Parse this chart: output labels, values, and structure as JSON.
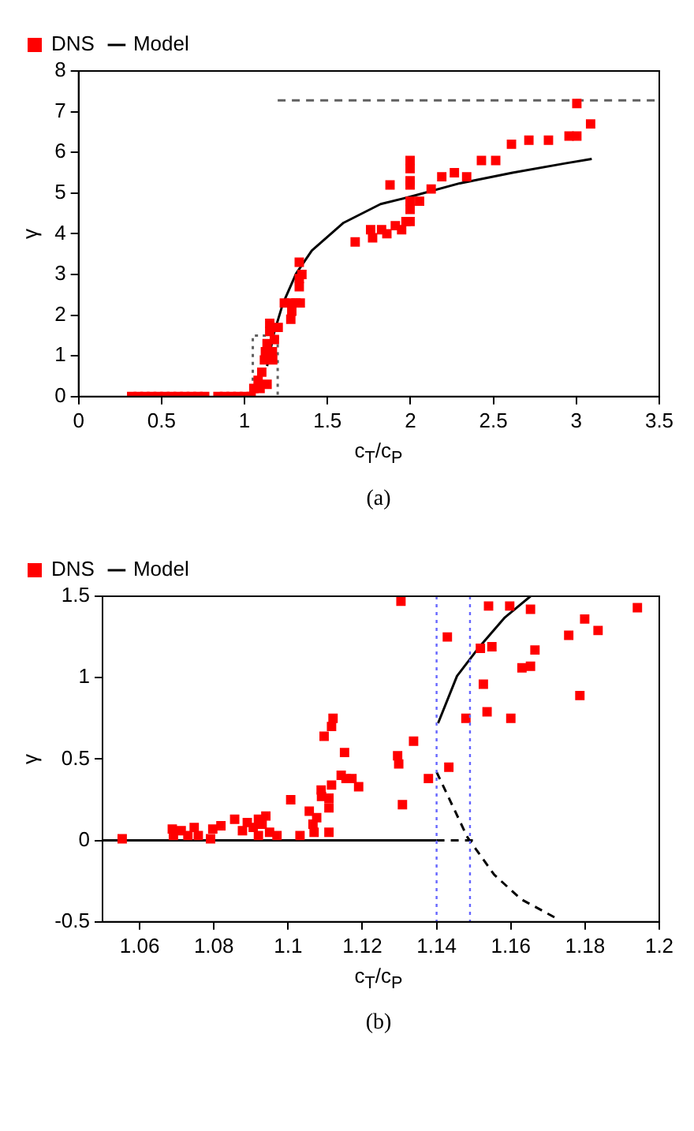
{
  "chart_data": [
    {
      "type": "scatter",
      "xlabel": "c$_{T}$/c$_{P}$",
      "ylabel": "γ",
      "xlim": [
        0,
        3.5
      ],
      "ylim": [
        0,
        8
      ],
      "xticks": [
        0,
        0.5,
        1,
        1.5,
        2,
        2.5,
        3,
        3.5
      ],
      "yticks": [
        0,
        1,
        2,
        3,
        4,
        5,
        6,
        7,
        8
      ],
      "legend": "top left",
      "annotations": [
        "(a)"
      ],
      "series": [
        {
          "name": "DNS",
          "color": "#ff0000",
          "marker": "square",
          "x": [
            0.32,
            0.36,
            0.4,
            0.44,
            0.48,
            0.52,
            0.56,
            0.6,
            0.64,
            0.68,
            0.72,
            0.76,
            0.84,
            0.88,
            0.92,
            0.96,
            1.0,
            1.04,
            1.056,
            1.082,
            1.094,
            1.104,
            1.12,
            1.126,
            1.136,
            1.136,
            1.152,
            1.152,
            1.168,
            1.17,
            1.18,
            1.203,
            1.24,
            1.279,
            1.279,
            1.285,
            1.31,
            1.33,
            1.33,
            1.33,
            1.336,
            1.346,
            1.667,
            1.76,
            1.772,
            1.826,
            1.858,
            1.877,
            1.909,
            1.947,
            1.973,
            1.998,
            1.998,
            1.998,
            1.998,
            1.998,
            1.998,
            1.998,
            2.055,
            2.125,
            2.189,
            2.265,
            2.339,
            2.428,
            2.514,
            2.609,
            2.714,
            2.832,
            2.956,
            3.003,
            3.003,
            3.086
          ],
          "values": [
            0,
            0,
            0,
            0,
            0,
            0,
            0,
            0,
            0,
            0,
            0,
            0,
            0,
            0,
            0,
            0,
            0,
            0,
            0.2,
            0.4,
            0.2,
            0.6,
            0.9,
            1.1,
            1.3,
            0.3,
            1.8,
            1.6,
            1.1,
            0.9,
            1.4,
            1.7,
            2.3,
            2.3,
            1.9,
            2.1,
            2.3,
            3.3,
            2.9,
            2.7,
            2.3,
            3.0,
            3.8,
            4.1,
            3.9,
            4.1,
            4.0,
            5.2,
            4.2,
            4.1,
            4.3,
            4.3,
            4.6,
            4.8,
            5.2,
            5.3,
            5.6,
            5.8,
            4.8,
            5.1,
            5.4,
            5.5,
            5.4,
            5.8,
            5.8,
            6.2,
            6.3,
            6.3,
            6.4,
            6.4,
            7.2,
            6.7
          ]
        },
        {
          "name": "Model",
          "color": "#000000",
          "type": "line",
          "marker": "none",
          "line_style": "solid",
          "x": [
            1.136,
            1.177,
            1.231,
            1.311,
            1.406,
            1.597,
            1.82,
            1.998,
            2.297,
            2.615,
            2.933,
            3.093
          ],
          "values": [
            0.75,
            1.55,
            2.28,
            3.02,
            3.59,
            4.27,
            4.73,
            4.91,
            5.24,
            5.5,
            5.73,
            5.84
          ]
        },
        {
          "color": "#606060",
          "type": "line",
          "marker": "none",
          "line_style": "dashed",
          "x": [
            1.2,
            3.5
          ],
          "values": [
            7.28,
            7.28
          ]
        },
        {
          "color": "#606060",
          "type": "line",
          "marker": "none",
          "line_style": "dotted",
          "x": [
            1.05,
            1.05,
            1.2,
            1.2
          ],
          "values": [
            0,
            1.5,
            1.5,
            0
          ]
        }
      ]
    },
    {
      "type": "scatter",
      "xlabel": "c$_{T}$/c$_{P}$",
      "ylabel": "γ",
      "xlim": [
        1.05,
        1.2
      ],
      "ylim": [
        -0.5,
        1.5
      ],
      "xticks": [
        1.06,
        1.08,
        1.1,
        1.12,
        1.14,
        1.16,
        1.18,
        1.2
      ],
      "yticks": [
        -0.5,
        0,
        0.5,
        1,
        1.5
      ],
      "legend": "top left",
      "annotations": [
        "(b)"
      ],
      "ref_lines": [
        {
          "axis": "x",
          "value": 1.14,
          "color": "#6666ff",
          "line_style": "dotted"
        },
        {
          "axis": "x",
          "value": 1.149,
          "color": "#6666ff",
          "line_style": "dotted"
        }
      ],
      "series": [
        {
          "name": "DNS",
          "color": "#ff0000",
          "marker": "square",
          "x": [
            1.0553,
            1.0688,
            1.0691,
            1.0712,
            1.073,
            1.0747,
            1.0758,
            1.0791,
            1.0797,
            1.0819,
            1.0856,
            1.0877,
            1.089,
            1.0906,
            1.092,
            1.092,
            1.093,
            1.094,
            1.095,
            1.097,
            1.1007,
            1.1032,
            1.1057,
            1.1067,
            1.107,
            1.1077,
            1.1089,
            1.109,
            1.1097,
            1.111,
            1.111,
            1.111,
            1.1117,
            1.1117,
            1.1121,
            1.1143,
            1.1152,
            1.1156,
            1.1172,
            1.119,
            1.1295,
            1.1298,
            1.1304,
            1.1308,
            1.1338,
            1.1378,
            1.1429,
            1.1433,
            1.1479,
            1.1518,
            1.1526,
            1.1536,
            1.154,
            1.1549,
            1.1597,
            1.16,
            1.163,
            1.1653,
            1.1653,
            1.1665,
            1.1756,
            1.1786,
            1.1799,
            1.1835,
            1.1941
          ],
          "values": [
            0.01,
            0.07,
            0.03,
            0.06,
            0.03,
            0.08,
            0.03,
            0.01,
            0.07,
            0.09,
            0.13,
            0.06,
            0.11,
            0.08,
            0.03,
            0.13,
            0.1,
            0.15,
            0.05,
            0.03,
            0.25,
            0.03,
            0.18,
            0.1,
            0.05,
            0.14,
            0.31,
            0.27,
            0.64,
            0.2,
            0.26,
            0.05,
            0.34,
            0.7,
            0.75,
            0.4,
            0.54,
            0.38,
            0.38,
            0.33,
            0.52,
            0.47,
            1.47,
            0.22,
            0.61,
            0.38,
            1.25,
            0.45,
            0.75,
            1.18,
            0.96,
            0.79,
            1.44,
            1.19,
            1.44,
            0.75,
            1.06,
            1.07,
            1.42,
            1.17,
            1.26,
            0.89,
            1.36,
            1.29,
            1.43
          ]
        },
        {
          "name": "Model",
          "color": "#000000",
          "type": "line",
          "marker": "none",
          "line_style": "solid",
          "x": [
            1.05,
            1.14,
            null,
            1.1404,
            1.1455,
            1.1512,
            1.1584,
            1.1653
          ],
          "values": [
            0,
            0,
            null,
            0.72,
            1.01,
            1.18,
            1.37,
            1.5
          ]
        },
        {
          "color": "#000000",
          "type": "line",
          "marker": "none",
          "line_style": "dashed",
          "x": [
            1.14,
            1.15,
            null,
            1.14,
            1.1483,
            1.1555,
            1.1627,
            1.1724
          ],
          "values": [
            0,
            0,
            null,
            0.42,
            0.02,
            -0.21,
            -0.36,
            -0.48
          ]
        }
      ]
    }
  ]
}
